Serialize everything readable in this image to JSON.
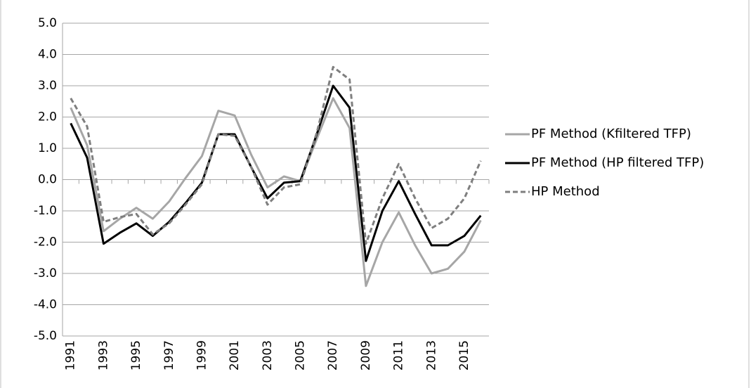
{
  "chart_data": {
    "type": "line",
    "categories": [
      "1991",
      null,
      "1993",
      null,
      "1995",
      null,
      "1997",
      null,
      "1999",
      null,
      "2001",
      null,
      "2003",
      null,
      "2005",
      null,
      "2007",
      null,
      "2009",
      null,
      "2011",
      null,
      "2013",
      null,
      "2015",
      null
    ],
    "ylim": [
      -5,
      5
    ],
    "yticks": [
      {
        "value": -5,
        "label": "-5.0"
      },
      {
        "value": -4,
        "label": "-4.0"
      },
      {
        "value": -3,
        "label": "-3.0"
      },
      {
        "value": -2,
        "label": "-2.0"
      },
      {
        "value": -1,
        "label": "-1.0"
      },
      {
        "value": 0,
        "label": "0.0"
      },
      {
        "value": 1,
        "label": "1.0"
      },
      {
        "value": 2,
        "label": "2.0"
      },
      {
        "value": 3,
        "label": "3.0"
      },
      {
        "value": 4,
        "label": "4.0"
      },
      {
        "value": 5,
        "label": "5.0"
      }
    ],
    "grid": true,
    "legend": "right",
    "series": [
      {
        "name": "PF Method (Kfiltered TFP)",
        "color": "#a6a6a6",
        "dashed": false,
        "values": [
          2.3,
          1.1,
          -1.65,
          -1.25,
          -0.9,
          -1.25,
          -0.7,
          0.05,
          0.75,
          2.2,
          2.05,
          0.8,
          -0.25,
          0.1,
          -0.05,
          1.3,
          2.6,
          1.65,
          -3.4,
          -2.0,
          -1.05,
          -2.1,
          -3.0,
          -2.85,
          -2.3,
          -1.3
        ]
      },
      {
        "name": "PF Method (HP filtered TFP)",
        "color": "#000000",
        "dashed": false,
        "values": [
          1.8,
          0.7,
          -2.05,
          -1.7,
          -1.4,
          -1.8,
          -1.35,
          -0.75,
          -0.1,
          1.45,
          1.45,
          0.4,
          -0.6,
          -0.1,
          -0.05,
          1.45,
          3.0,
          2.3,
          -2.6,
          -1.0,
          -0.05,
          -1.1,
          -2.1,
          -2.1,
          -1.8,
          -1.15
        ]
      },
      {
        "name": "HP Method",
        "color": "#7f7f7f",
        "dashed": true,
        "values": [
          2.6,
          1.7,
          -1.35,
          -1.2,
          -1.1,
          -1.75,
          -1.4,
          -0.8,
          -0.15,
          1.45,
          1.4,
          0.4,
          -0.8,
          -0.25,
          -0.15,
          1.5,
          3.6,
          3.2,
          -2.05,
          -0.6,
          0.5,
          -0.6,
          -1.55,
          -1.25,
          -0.6,
          0.6
        ]
      }
    ]
  }
}
